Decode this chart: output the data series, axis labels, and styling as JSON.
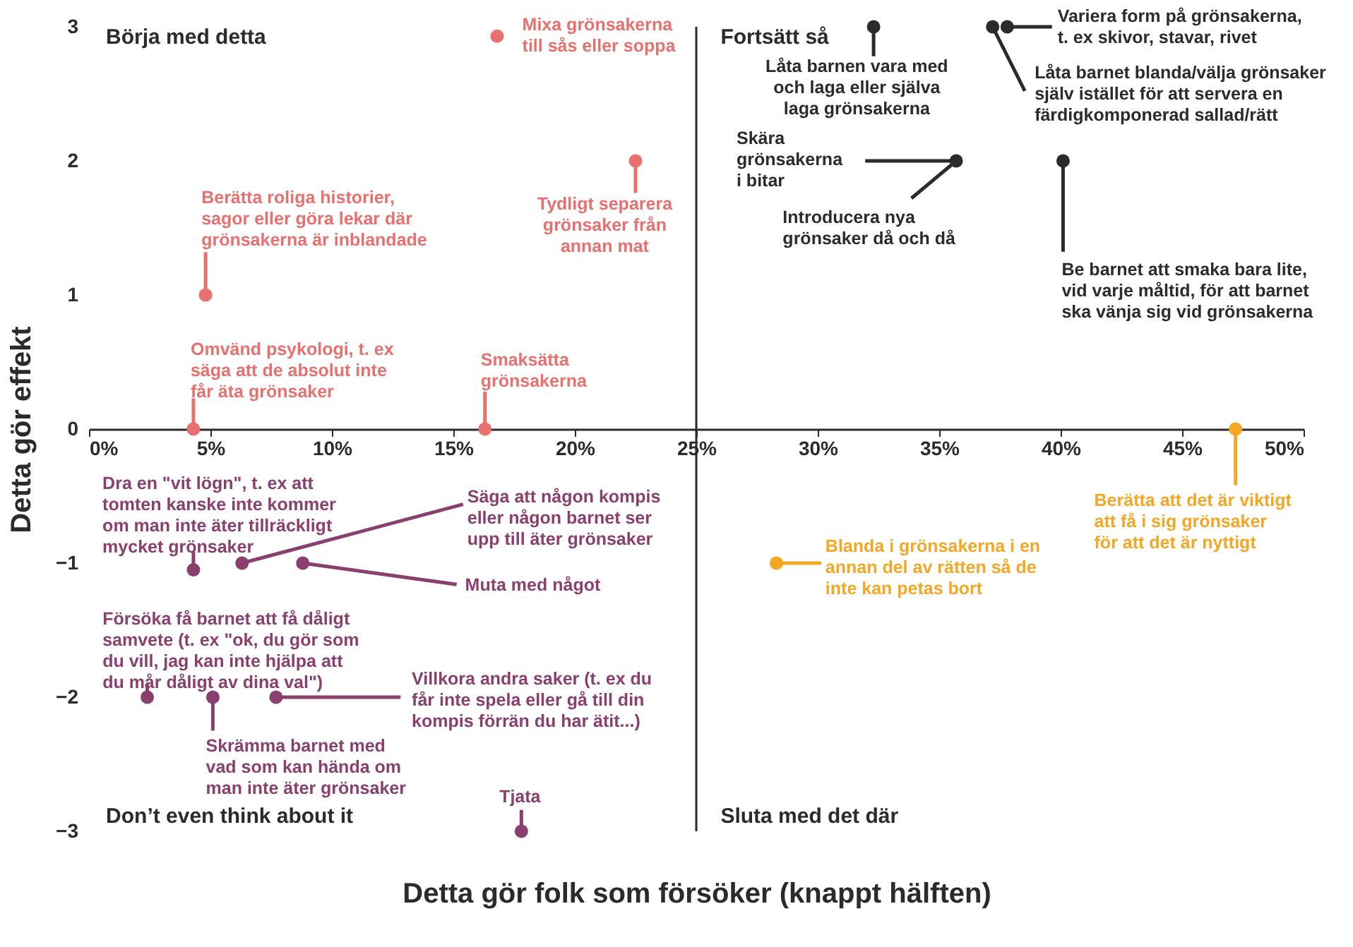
{
  "chart_data": {
    "type": "scatter",
    "xlabel": "Detta gör folk som försöker (knappt hälften)",
    "ylabel": "Detta gör effekt",
    "xlim": [
      0,
      50
    ],
    "ylim": [
      -3,
      3
    ],
    "xticks": [
      {
        "value": 0,
        "label": "0%"
      },
      {
        "value": 5,
        "label": "5%"
      },
      {
        "value": 10,
        "label": "10%"
      },
      {
        "value": 15,
        "label": "15%"
      },
      {
        "value": 20,
        "label": "20%"
      },
      {
        "value": 25,
        "label": "25%"
      },
      {
        "value": 30,
        "label": "30%"
      },
      {
        "value": 35,
        "label": "35%"
      },
      {
        "value": 40,
        "label": "40%"
      },
      {
        "value": 45,
        "label": "45%"
      },
      {
        "value": 50,
        "label": "50%"
      }
    ],
    "yticks": [
      -3,
      -2,
      -1,
      0,
      1,
      2,
      3
    ],
    "grid": false,
    "marker": "circle",
    "ref_lines": [
      {
        "axis": "x",
        "value": 25,
        "color": "#2b2b2b"
      }
    ],
    "series": [
      {
        "color": "#e8716f",
        "x": [
          16.8,
          4.8,
          22.5,
          4.3,
          16.3
        ],
        "values": [
          2.93,
          1,
          2,
          0,
          0
        ]
      },
      {
        "color": "#2b2b2b",
        "x": [
          32.3,
          37.8,
          37.2,
          35.7,
          40.1
        ],
        "values": [
          3,
          3,
          3,
          2,
          2
        ]
      },
      {
        "color": "#f5a623",
        "x": [
          47.2,
          28.3
        ],
        "values": [
          0,
          -1
        ]
      },
      {
        "color": "#8b3f6e",
        "x": [
          4.3,
          6.3,
          8.8,
          2.4,
          5.1,
          7.7,
          17.8
        ],
        "values": [
          -1.05,
          -1,
          -1,
          -2,
          -2,
          -2,
          -3
        ]
      }
    ],
    "annotations": [
      {
        "text": "Mixa grönsakerna\ntill sås eller soppa",
        "x": 16.8,
        "y": 2.93
      },
      {
        "text": "Berätta roliga historier,\nsagor eller göra lekar där\ngrönsakerna är inblandade",
        "x": 4.8,
        "y": 1
      },
      {
        "text": "Tydligt separera\ngrönsaker från\nannan mat",
        "x": 22.5,
        "y": 2
      },
      {
        "text": "Omvänd psykologi, t. ex\nsäga att de absolut inte\nfår äta grönsaker",
        "x": 4.3,
        "y": 0
      },
      {
        "text": "Smaksätta\ngrönsakerna",
        "x": 16.3,
        "y": 0
      },
      {
        "text": "Låta barnen vara med\noch laga eller själva\nlaga grönsakerna",
        "x": 32.3,
        "y": 3
      },
      {
        "text": "Variera form på grönsakerna,\nt. ex skivor, stavar, rivet",
        "x": 37.8,
        "y": 3
      },
      {
        "text": "Låta barnet blanda/välja grönsaker\nsjälv istället för att servera en\nfärdigkomponerad sallad/rätt",
        "x": 37.2,
        "y": 3
      },
      {
        "text": "Skära\ngrönsakerna\ni bitar",
        "x": 35.7,
        "y": 2
      },
      {
        "text": "Introducera nya\ngrönsaker då och då",
        "x": 35.7,
        "y": 2
      },
      {
        "text": "Be barnet att smaka bara lite,\nvid varje måltid, för att barnet\nska vänja sig vid grönsakerna",
        "x": 40.1,
        "y": 2
      },
      {
        "text": "Berätta att det är viktigt\natt få i sig grönsaker\nför att det är nyttigt",
        "x": 47.2,
        "y": 0
      },
      {
        "text": "Blanda i grönsakerna i en\nannan del av rätten så de\ninte kan petas bort",
        "x": 28.3,
        "y": -1
      },
      {
        "text": "Dra en \"vit lögn\", t. ex att\ntomten kanske inte kommer\nom man inte äter tillräckligt\nmycket grönsaker",
        "x": 4.3,
        "y": -1.05
      },
      {
        "text": "Säga att någon kompis\neller någon barnet ser\nupp till äter grönsaker",
        "x": 6.3,
        "y": -1
      },
      {
        "text": "Muta med något",
        "x": 8.8,
        "y": -1
      },
      {
        "text": "Försöka få barnet att få dåligt\nsamvete (t. ex \"ok, du gör som\ndu vill, jag kan inte hjälpa att\ndu mår dåligt av dina val\")",
        "x": 2.4,
        "y": -2
      },
      {
        "text": "Skrämma barnet med\nvad som kan hända om\nman inte äter grönsaker",
        "x": 5.1,
        "y": -2
      },
      {
        "text": "Villkora andra saker (t. ex du\nfår inte spela eller gå till din\nkompis förrän du har ätit...)",
        "x": 7.7,
        "y": -2
      },
      {
        "text": "Tjata",
        "x": 17.8,
        "y": -3
      },
      "Börja med detta",
      "Fortsätt så",
      "Don’t even think about it",
      "Sluta med det där"
    ]
  }
}
